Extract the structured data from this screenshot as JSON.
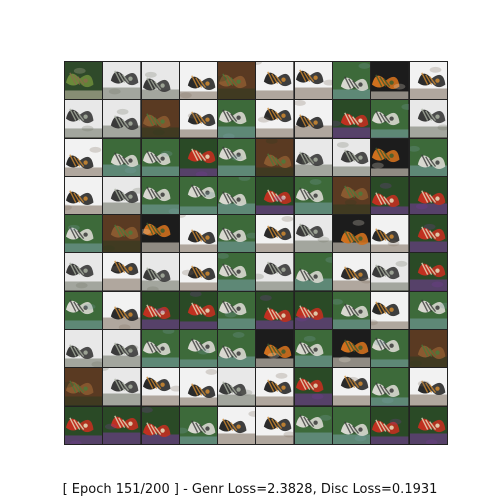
{
  "caption": "[ Epoch 151/200 ] - Genr Loss=2.3828, Disc Loss=0.1931",
  "grid": {
    "rows": 10,
    "cols": 10,
    "tiles": [
      "green-dark",
      "zebra-white",
      "zebra-white",
      "dark-wing-white",
      "brown-green",
      "dark-wing-white",
      "dark-wing-white",
      "zebra-green",
      "orange-dark",
      "dark-wing-white",
      "zebra-white",
      "zebra-white",
      "brown-green",
      "dark-wing-white",
      "zebra-green",
      "dark-wing-white",
      "dark-wing-white",
      "colorful",
      "zebra-green",
      "zebra-white",
      "dark-wing-white",
      "zebra-green",
      "zebra-green",
      "colorful",
      "zebra-green",
      "brown-green",
      "zebra-white",
      "zebra-white",
      "orange-dark",
      "zebra-green",
      "dark-wing-white",
      "zebra-white",
      "zebra-green",
      "zebra-green",
      "zebra-green",
      "colorful",
      "zebra-green",
      "brown-green",
      "colorful",
      "colorful",
      "zebra-green",
      "brown-green",
      "orange-dark",
      "dark-wing-white",
      "zebra-green",
      "dark-wing-white",
      "zebra-white",
      "orange-dark",
      "dark-wing-white",
      "colorful",
      "zebra-white",
      "dark-wing-white",
      "zebra-white",
      "dark-wing-white",
      "zebra-green",
      "zebra-white",
      "zebra-green",
      "dark-wing-white",
      "zebra-white",
      "colorful",
      "zebra-green",
      "dark-wing-white",
      "colorful",
      "colorful",
      "zebra-green",
      "colorful",
      "colorful",
      "zebra-green",
      "dark-wing-white",
      "zebra-green",
      "zebra-white",
      "zebra-white",
      "zebra-green",
      "zebra-green",
      "zebra-green",
      "orange-dark",
      "zebra-green",
      "orange-dark",
      "zebra-green",
      "brown-green",
      "brown-green",
      "zebra-white",
      "dark-wing-white",
      "dark-wing-white",
      "zebra-white",
      "dark-wing-white",
      "colorful",
      "dark-wing-white",
      "zebra-green",
      "dark-wing-white",
      "colorful",
      "colorful",
      "colorful",
      "zebra-green",
      "dark-wing-white",
      "dark-wing-white",
      "zebra-green",
      "zebra-green",
      "colorful",
      "colorful"
    ]
  },
  "palette": {
    "green-dark": [
      "#2f4a2a",
      "#6a8a3a",
      "#8a6a4a",
      "#cfc6b0"
    ],
    "zebra-white": [
      "#e8e8e8",
      "#3a3a3a",
      "#a8b0a0",
      "#6a7060"
    ],
    "zebra-green": [
      "#3d6a3a",
      "#d8d8d0",
      "#3a3a3a",
      "#7aa0a8"
    ],
    "dark-wing-white": [
      "#f2f2f2",
      "#2a2a2a",
      "#d08a30",
      "#7a6a5a"
    ],
    "brown-green": [
      "#5a3a22",
      "#8a5a30",
      "#4a7a3a",
      "#2c3a20"
    ],
    "orange-dark": [
      "#1c1c1c",
      "#d0701e",
      "#3d5e2e",
      "#f0e8d8"
    ],
    "colorful": [
      "#2a4a26",
      "#c03020",
      "#e8e0c0",
      "#7a3aa0"
    ]
  }
}
